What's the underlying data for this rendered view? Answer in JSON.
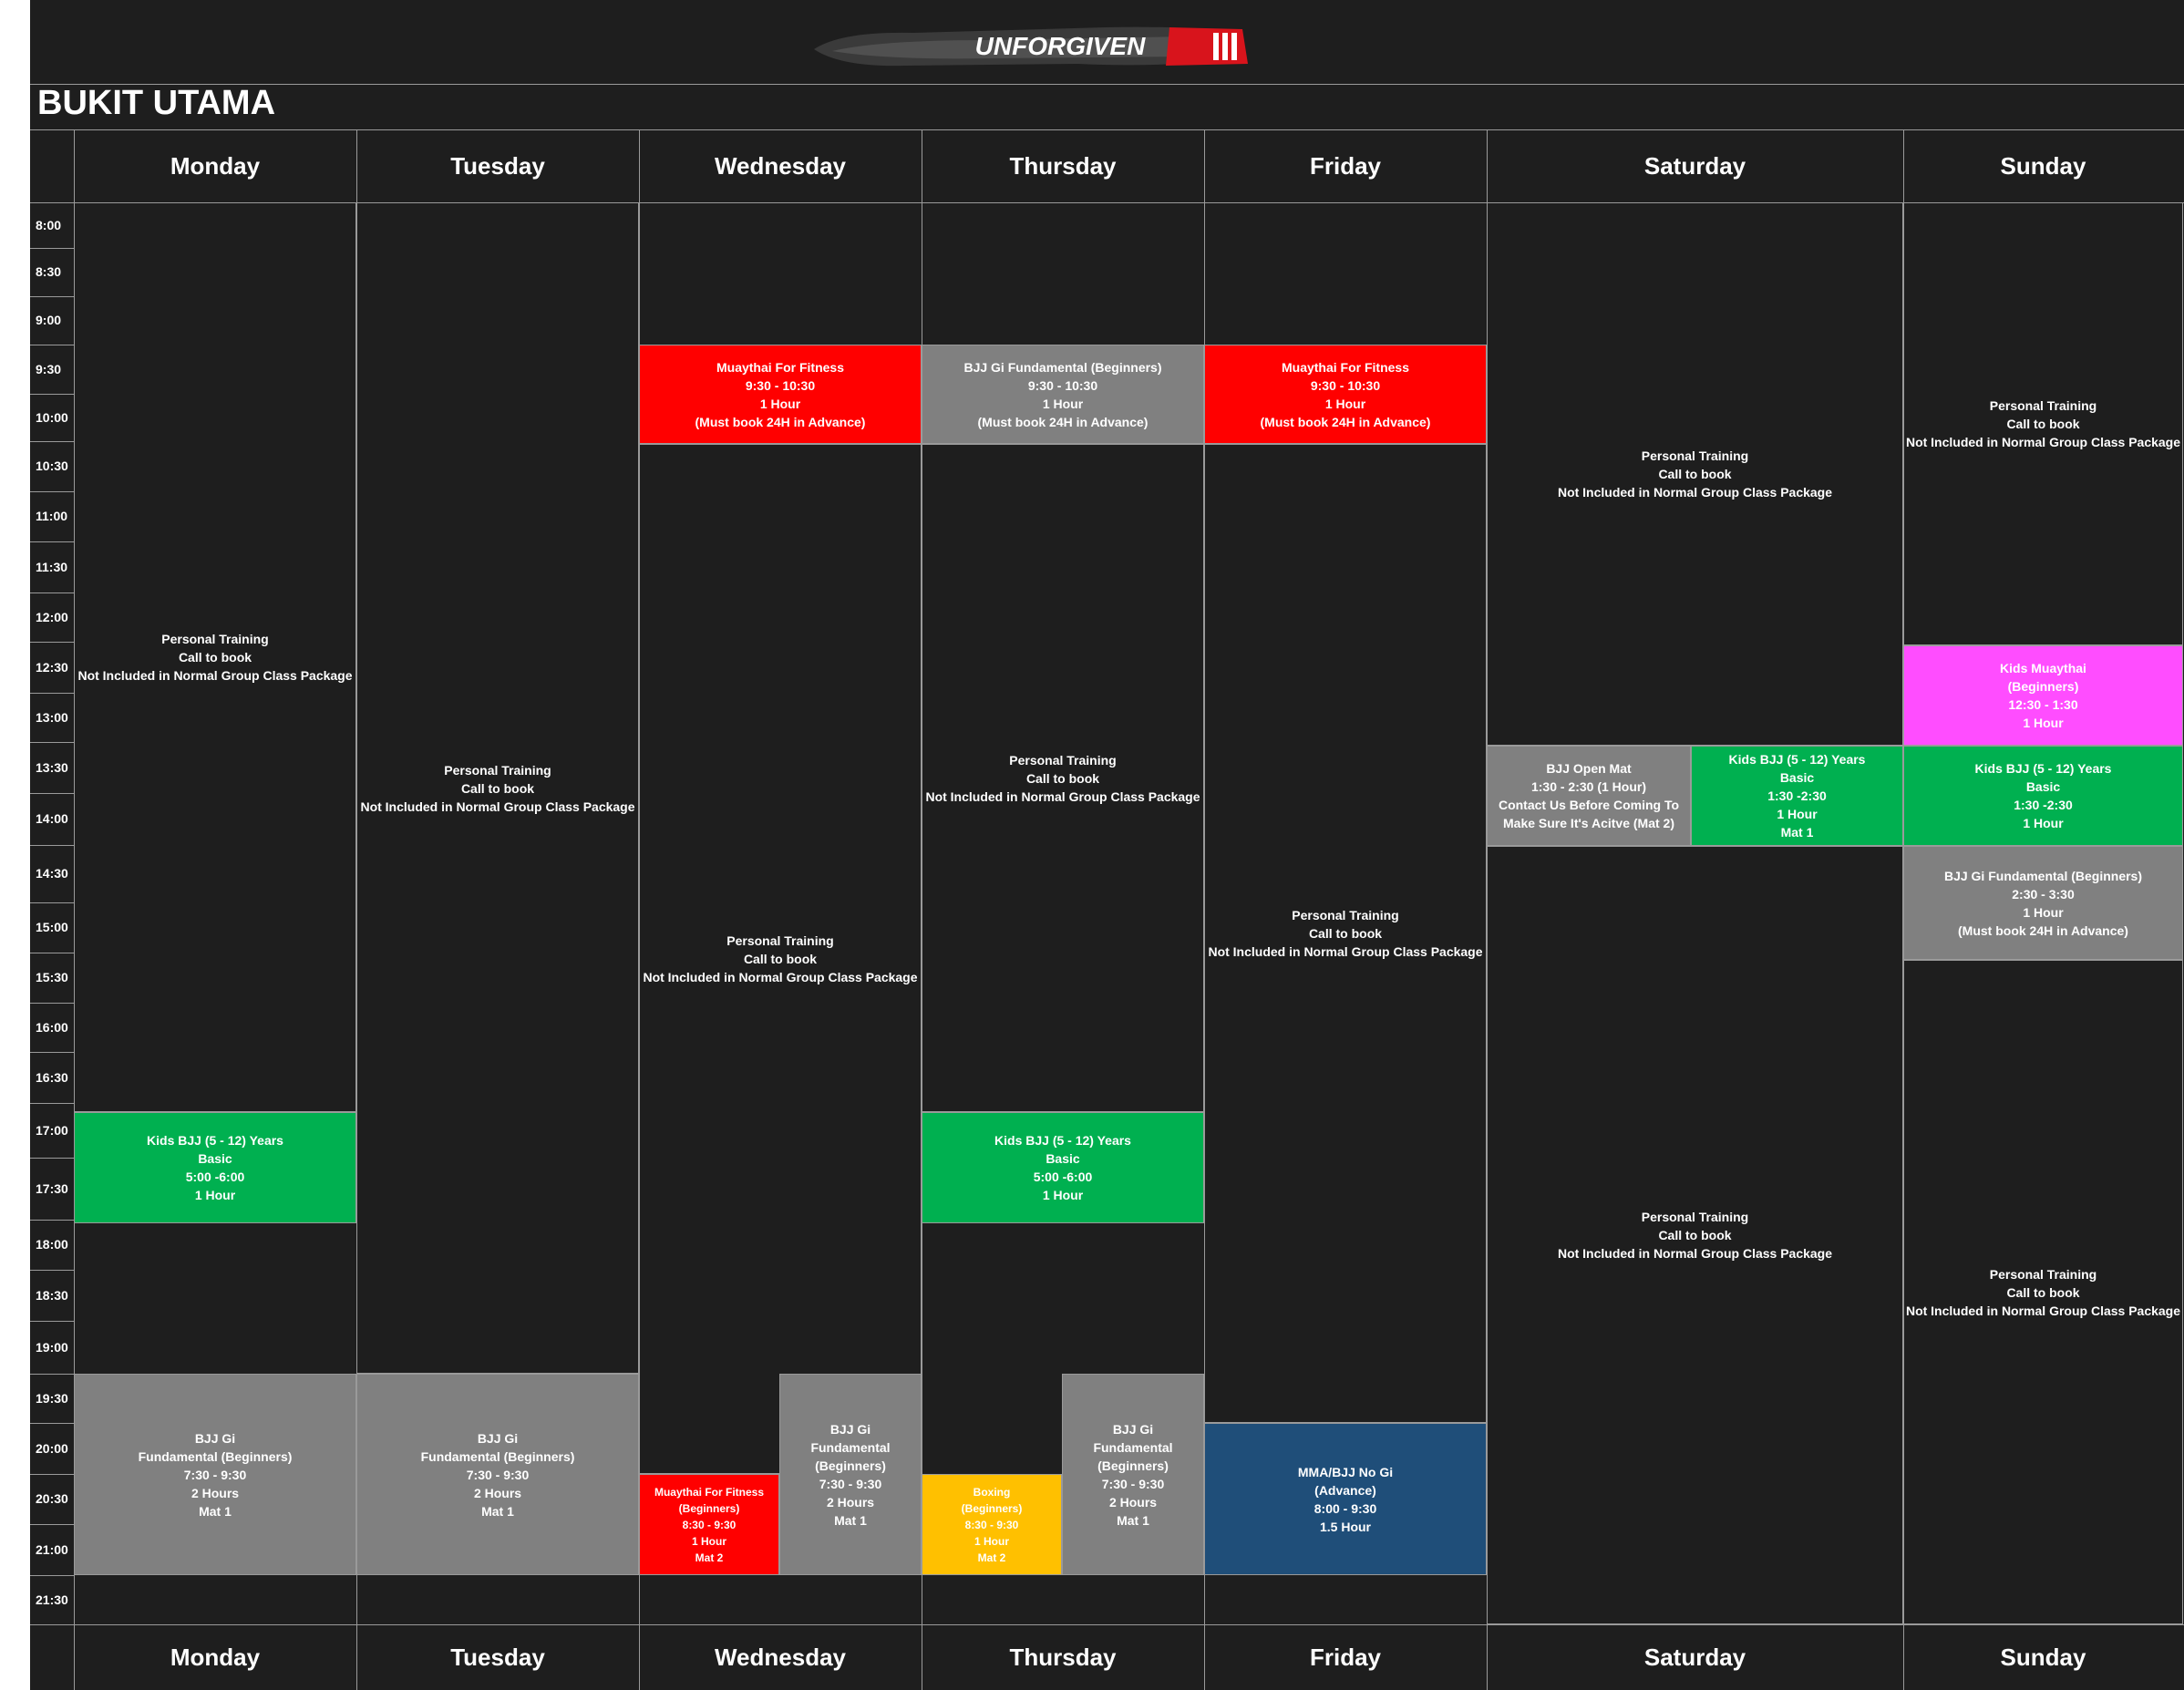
{
  "logo": {
    "text": "UNFORGIVEN"
  },
  "location": "BUKIT UTAMA",
  "days": [
    "Monday",
    "Tuesday",
    "Wednesday",
    "Thursday",
    "Friday",
    "Saturday",
    "Sunday"
  ],
  "times": [
    "8:00",
    "8:30",
    "9:00",
    "9:30",
    "10:00",
    "10:30",
    "11:00",
    "11:30",
    "12:00",
    "12:30",
    "13:00",
    "13:30",
    "14:00",
    "14:30",
    "15:00",
    "15:30",
    "16:00",
    "16:30",
    "17:00",
    "17:30",
    "18:00",
    "18:30",
    "19:00",
    "19:30",
    "20:00",
    "20:30",
    "21:00",
    "21:30"
  ],
  "colors": {
    "red": "#ff0000",
    "grey": "#808080",
    "green": "#00b050",
    "pink": "#ff4dff",
    "yellow": "#ffc000",
    "navy": "#1f4e79",
    "dark": "#1e1e1e"
  },
  "classes": [
    {
      "color": "dark",
      "lines": [
        "Personal Training",
        "Call to book",
        "Not Included in Normal Group Class Package"
      ]
    },
    {
      "color": "green",
      "lines": [
        "Kids BJJ (5 - 12) Years",
        "Basic",
        "5:00 -6:00",
        "1 Hour"
      ]
    },
    {
      "color": "grey",
      "lines": [
        "BJJ Gi",
        "Fundamental (Beginners)",
        "7:30 - 9:30",
        "2 Hours",
        "Mat 1"
      ]
    },
    {
      "color": "dark",
      "lines": [
        "Personal Training",
        "Call to book",
        "Not Included in Normal Group Class Package"
      ]
    },
    {
      "color": "grey",
      "lines": [
        "BJJ Gi",
        "Fundamental (Beginners)",
        "7:30 - 9:30",
        "2 Hours",
        "Mat 1"
      ]
    },
    {
      "color": "red",
      "lines": [
        "Muaythai For Fitness",
        "9:30 - 10:30",
        "1 Hour",
        "(Must book 24H in Advance)"
      ]
    },
    {
      "color": "dark",
      "lines": [
        "Personal Training",
        "Call to book",
        "Not Included in Normal Group Class Package"
      ]
    },
    {
      "color": "grey",
      "lines": [
        "BJJ Gi",
        "Fundamental",
        "(Beginners)",
        "7:30 - 9:30",
        "2 Hours",
        "Mat 1"
      ]
    },
    {
      "color": "red",
      "lines": [
        "Muaythai For Fitness",
        "(Beginners)",
        "8:30 - 9:30",
        "1 Hour",
        "Mat 2"
      ]
    },
    {
      "color": "grey",
      "lines": [
        "BJJ Gi Fundamental (Beginners)",
        "9:30 - 10:30",
        "1 Hour",
        "(Must book 24H in Advance)"
      ]
    },
    {
      "color": "dark",
      "lines": [
        "Personal Training",
        "Call to book",
        "Not Included in Normal Group Class Package"
      ]
    },
    {
      "color": "green",
      "lines": [
        "Kids BJJ (5 - 12) Years",
        "Basic",
        "5:00 -6:00",
        "1 Hour"
      ]
    },
    {
      "color": "yellow",
      "lines": [
        "Boxing",
        "(Beginners)",
        "8:30 - 9:30",
        "1 Hour",
        "Mat 2"
      ]
    },
    {
      "color": "grey",
      "lines": [
        "BJJ Gi",
        "Fundamental",
        "(Beginners)",
        "7:30 - 9:30",
        "2 Hours",
        "Mat 1"
      ]
    },
    {
      "color": "red",
      "lines": [
        "Muaythai For Fitness",
        "9:30 - 10:30",
        "1 Hour",
        "(Must book 24H in Advance)"
      ]
    },
    {
      "color": "dark",
      "lines": [
        "Personal Training",
        "Call to book",
        "Not Included in Normal Group Class Package"
      ]
    },
    {
      "color": "navy",
      "lines": [
        "MMA/BJJ No Gi",
        "(Advance)",
        "8:00 - 9:30",
        "1.5 Hour"
      ]
    },
    {
      "color": "dark",
      "lines": [
        "Personal Training",
        "Call to book",
        "Not Included in Normal Group Class Package"
      ]
    },
    {
      "color": "grey",
      "lines": [
        "BJJ Open Mat",
        "1:30 - 2:30 (1 Hour)",
        "Contact Us Before Coming To",
        "Make Sure It's Acitve (Mat 2)"
      ]
    },
    {
      "color": "green",
      "lines": [
        "Kids BJJ (5 - 12) Years",
        "Basic",
        "1:30 -2:30",
        "1 Hour",
        "Mat 1"
      ]
    },
    {
      "color": "dark",
      "lines": [
        "Personal Training",
        "Call to book",
        "Not Included in Normal Group Class Package"
      ]
    },
    {
      "color": "dark",
      "lines": [
        "Personal Training",
        "Call to book",
        "Not Included in Normal Group Class Package"
      ]
    },
    {
      "color": "pink",
      "lines": [
        "Kids Muaythai",
        "(Beginners)",
        "12:30 - 1:30",
        "1 Hour"
      ]
    },
    {
      "color": "green",
      "lines": [
        "Kids BJJ (5 - 12) Years",
        "Basic",
        "1:30 -2:30",
        "1 Hour"
      ]
    },
    {
      "color": "grey",
      "lines": [
        "BJJ Gi Fundamental (Beginners)",
        "2:30 - 3:30",
        "1 Hour",
        "(Must book 24H in Advance)"
      ]
    },
    {
      "color": "dark",
      "lines": [
        "Personal Training",
        "Call to book",
        "Not Included in Normal Group Class Package"
      ]
    }
  ]
}
